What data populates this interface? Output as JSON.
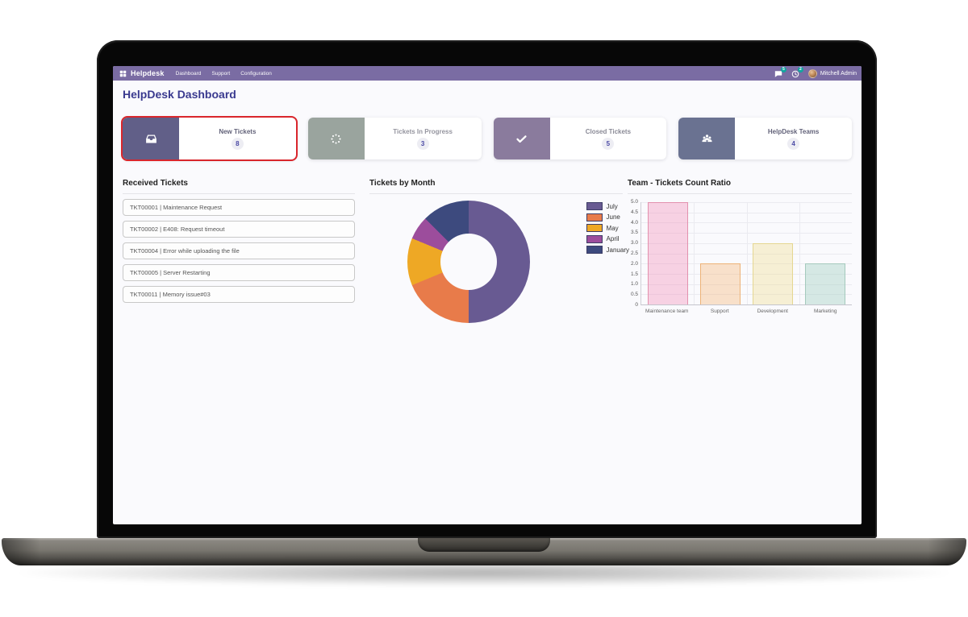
{
  "navbar": {
    "app_name": "Helpdesk",
    "menus": [
      "Dashboard",
      "Support",
      "Configuration"
    ],
    "messages_badge": "5",
    "activities_badge": "2",
    "user_name": "Mitchell Admin",
    "bg_color": "#7a6ca3",
    "badge_color": "#12a59f"
  },
  "page": {
    "title": "HelpDesk Dashboard"
  },
  "kpis": [
    {
      "label": "New Tickets",
      "value": "8",
      "icon": "inbox-icon",
      "icon_bg": "#615f88",
      "selected": true,
      "highlight_color": "#d9262c"
    },
    {
      "label": "Tickets In Progress",
      "value": "3",
      "icon": "spinner-icon",
      "icon_bg": "#9aa49e",
      "selected": false
    },
    {
      "label": "Closed Tickets",
      "value": "5",
      "icon": "check-icon",
      "icon_bg": "#8a7b9d",
      "selected": false
    },
    {
      "label": "HelpDesk Teams",
      "value": "4",
      "icon": "users-icon",
      "icon_bg": "#6a7291",
      "selected": false
    }
  ],
  "received_tickets": {
    "title": "Received Tickets",
    "items": [
      "TKT00001 | Maintenance Request",
      "TKT00002 | E408: Request timeout",
      "TKT00004 | Error while uploading the file",
      "TKT00005 | Server Restarting",
      "TKT00011 | Memory issue#03"
    ]
  },
  "chart_data": [
    {
      "type": "pie",
      "donut": true,
      "title": "Tickets by Month",
      "labels": [
        "July",
        "June",
        "May",
        "April",
        "January"
      ],
      "values": [
        8,
        3,
        2,
        1,
        2
      ],
      "colors": [
        "#685a92",
        "#e87b4a",
        "#eea825",
        "#9c4d9c",
        "#3d4a7e"
      ],
      "legend_position": "right",
      "start_angle_deg": 0,
      "direction": "clockwise"
    },
    {
      "type": "bar",
      "title": "Team - Tickets Count Ratio",
      "categories": [
        "Maintenance team",
        "Support",
        "Development",
        "Marketing"
      ],
      "values": [
        5,
        2,
        3,
        2
      ],
      "bar_fills": [
        "rgba(243,143,184,0.38)",
        "rgba(247,173,101,0.33)",
        "rgba(240,220,130,0.33)",
        "rgba(158,206,190,0.40)"
      ],
      "bar_borders": [
        "#e391ae",
        "#edb277",
        "#e5d791",
        "#a5cabd"
      ],
      "ylim": [
        0,
        5
      ],
      "ytick_step": 0.5,
      "grid": true,
      "legend_position": "none"
    }
  ]
}
